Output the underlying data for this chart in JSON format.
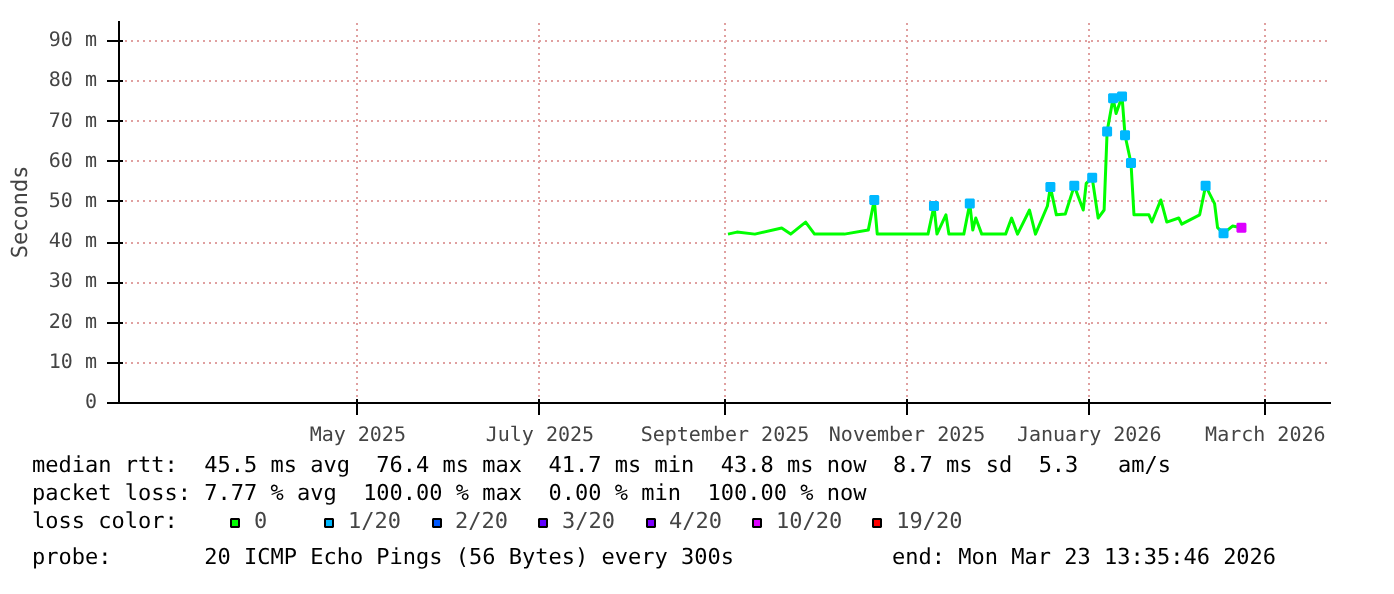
{
  "chart_data": {
    "type": "line",
    "ylabel": "Seconds",
    "legend_title": "loss color:",
    "legend": "bottom",
    "grid": true,
    "xlim": [
      "2025-02-10",
      "2026-03-23"
    ],
    "ylim": [
      0,
      95
    ],
    "xticks": [
      {
        "value": "2025-05-01",
        "label": "May 2025"
      },
      {
        "value": "2025-07-01",
        "label": "July 2025"
      },
      {
        "value": "2025-09-01",
        "label": "September 2025"
      },
      {
        "value": "2025-11-01",
        "label": "November 2025"
      },
      {
        "value": "2026-01-01",
        "label": "January 2026"
      },
      {
        "value": "2026-03-01",
        "label": "March 2026"
      }
    ],
    "yticks": [
      0,
      {
        "value": 10,
        "label": "10 m"
      },
      {
        "value": 20,
        "label": "20 m"
      },
      {
        "value": 30,
        "label": "30 m"
      },
      {
        "value": 40,
        "label": "40 m"
      },
      {
        "value": 50,
        "label": "50 m"
      },
      {
        "value": 60,
        "label": "60 m"
      },
      {
        "value": 70,
        "label": "70 m"
      },
      {
        "value": 80,
        "label": "80 m"
      },
      {
        "value": 90,
        "label": "90 m"
      }
    ],
    "annotations": [
      "median rtt:  45.5 ms avg  76.4 ms max  41.7 ms min  43.8 ms now  8.7 ms sd  5.3   am/s",
      "packet loss: 7.77 % avg  100.00 % max  0.00 % min  100.00 % now",
      "probe:       20 ICMP Echo Pings (56 Bytes) every 300s",
      "end: Mon Mar 23 13:35:46 2026"
    ],
    "series": [
      {
        "name": "0",
        "color": "#00ff00",
        "x": [
          "2025-09-02",
          "2025-09-05",
          "2025-09-11",
          "2025-09-20",
          "2025-09-23",
          "2025-09-28",
          "2025-10-01",
          "2025-10-11",
          "2025-10-19",
          "2025-10-21",
          "2025-10-22",
          "2025-11-04",
          "2025-11-08",
          "2025-11-10",
          "2025-11-11",
          "2025-11-14",
          "2025-11-15",
          "2025-11-20",
          "2025-11-22",
          "2025-11-23",
          "2025-11-24",
          "2025-11-26",
          "2025-12-04",
          "2025-12-06",
          "2025-12-08",
          "2025-12-12",
          "2025-12-14",
          "2025-12-18",
          "2025-12-19",
          "2025-12-21",
          "2025-12-24",
          "2025-12-27",
          "2025-12-30",
          "2025-12-31",
          "2026-01-02",
          "2026-01-04",
          "2026-01-06",
          "2026-01-07",
          "2026-01-09",
          "2026-01-10",
          "2026-01-12",
          "2026-01-13",
          "2026-01-15",
          "2026-01-16",
          "2026-01-21",
          "2026-01-22",
          "2026-01-25",
          "2026-01-27",
          "2026-01-31",
          "2026-02-01",
          "2026-02-07",
          "2026-02-09",
          "2026-02-12",
          "2026-02-13",
          "2026-02-15",
          "2026-02-18",
          "2026-02-21"
        ],
        "values": [
          42,
          42.5,
          42,
          43.5,
          42,
          45,
          42,
          42,
          43,
          50.5,
          42,
          42,
          42,
          49,
          42,
          46.8,
          42,
          42,
          49.6,
          43,
          46,
          42,
          42,
          46,
          42,
          48,
          42,
          49,
          53.7,
          46.8,
          47,
          54,
          48,
          54.6,
          56,
          46,
          48,
          67.5,
          75.8,
          72,
          76.2,
          66.6,
          59.7,
          46.8,
          46.8,
          45,
          50.5,
          45,
          46,
          44.5,
          46.8,
          54,
          49.6,
          43.6,
          42.2,
          44,
          43.6
        ]
      },
      {
        "name": "1/20",
        "type": "scatter",
        "marker": "square",
        "color": "#00b8ff",
        "x": [
          "2025-10-21",
          "2025-11-10",
          "2025-11-22",
          "2025-12-19",
          "2025-12-27",
          "2026-01-02",
          "2026-01-07",
          "2026-01-09",
          "2026-01-12",
          "2026-01-13",
          "2026-01-15",
          "2026-02-09",
          "2026-02-15"
        ],
        "values": [
          50.5,
          49,
          49.6,
          53.7,
          54,
          56,
          67.5,
          75.8,
          76.2,
          66.6,
          59.7,
          54,
          42.2
        ]
      },
      {
        "name": "2/20",
        "type": "scatter",
        "marker": "square",
        "color": "#0059ff"
      },
      {
        "name": "3/20",
        "type": "scatter",
        "marker": "square",
        "color": "#5e00ff"
      },
      {
        "name": "4/20",
        "type": "scatter",
        "marker": "square",
        "color": "#7e00ff"
      },
      {
        "name": "10/20",
        "type": "scatter",
        "marker": "square",
        "color": "#dd00ff",
        "x": [
          "2026-02-21"
        ],
        "values": [
          43.6
        ]
      },
      {
        "name": "19/20",
        "type": "scatter",
        "marker": "square",
        "color": "#ff0000"
      }
    ]
  }
}
